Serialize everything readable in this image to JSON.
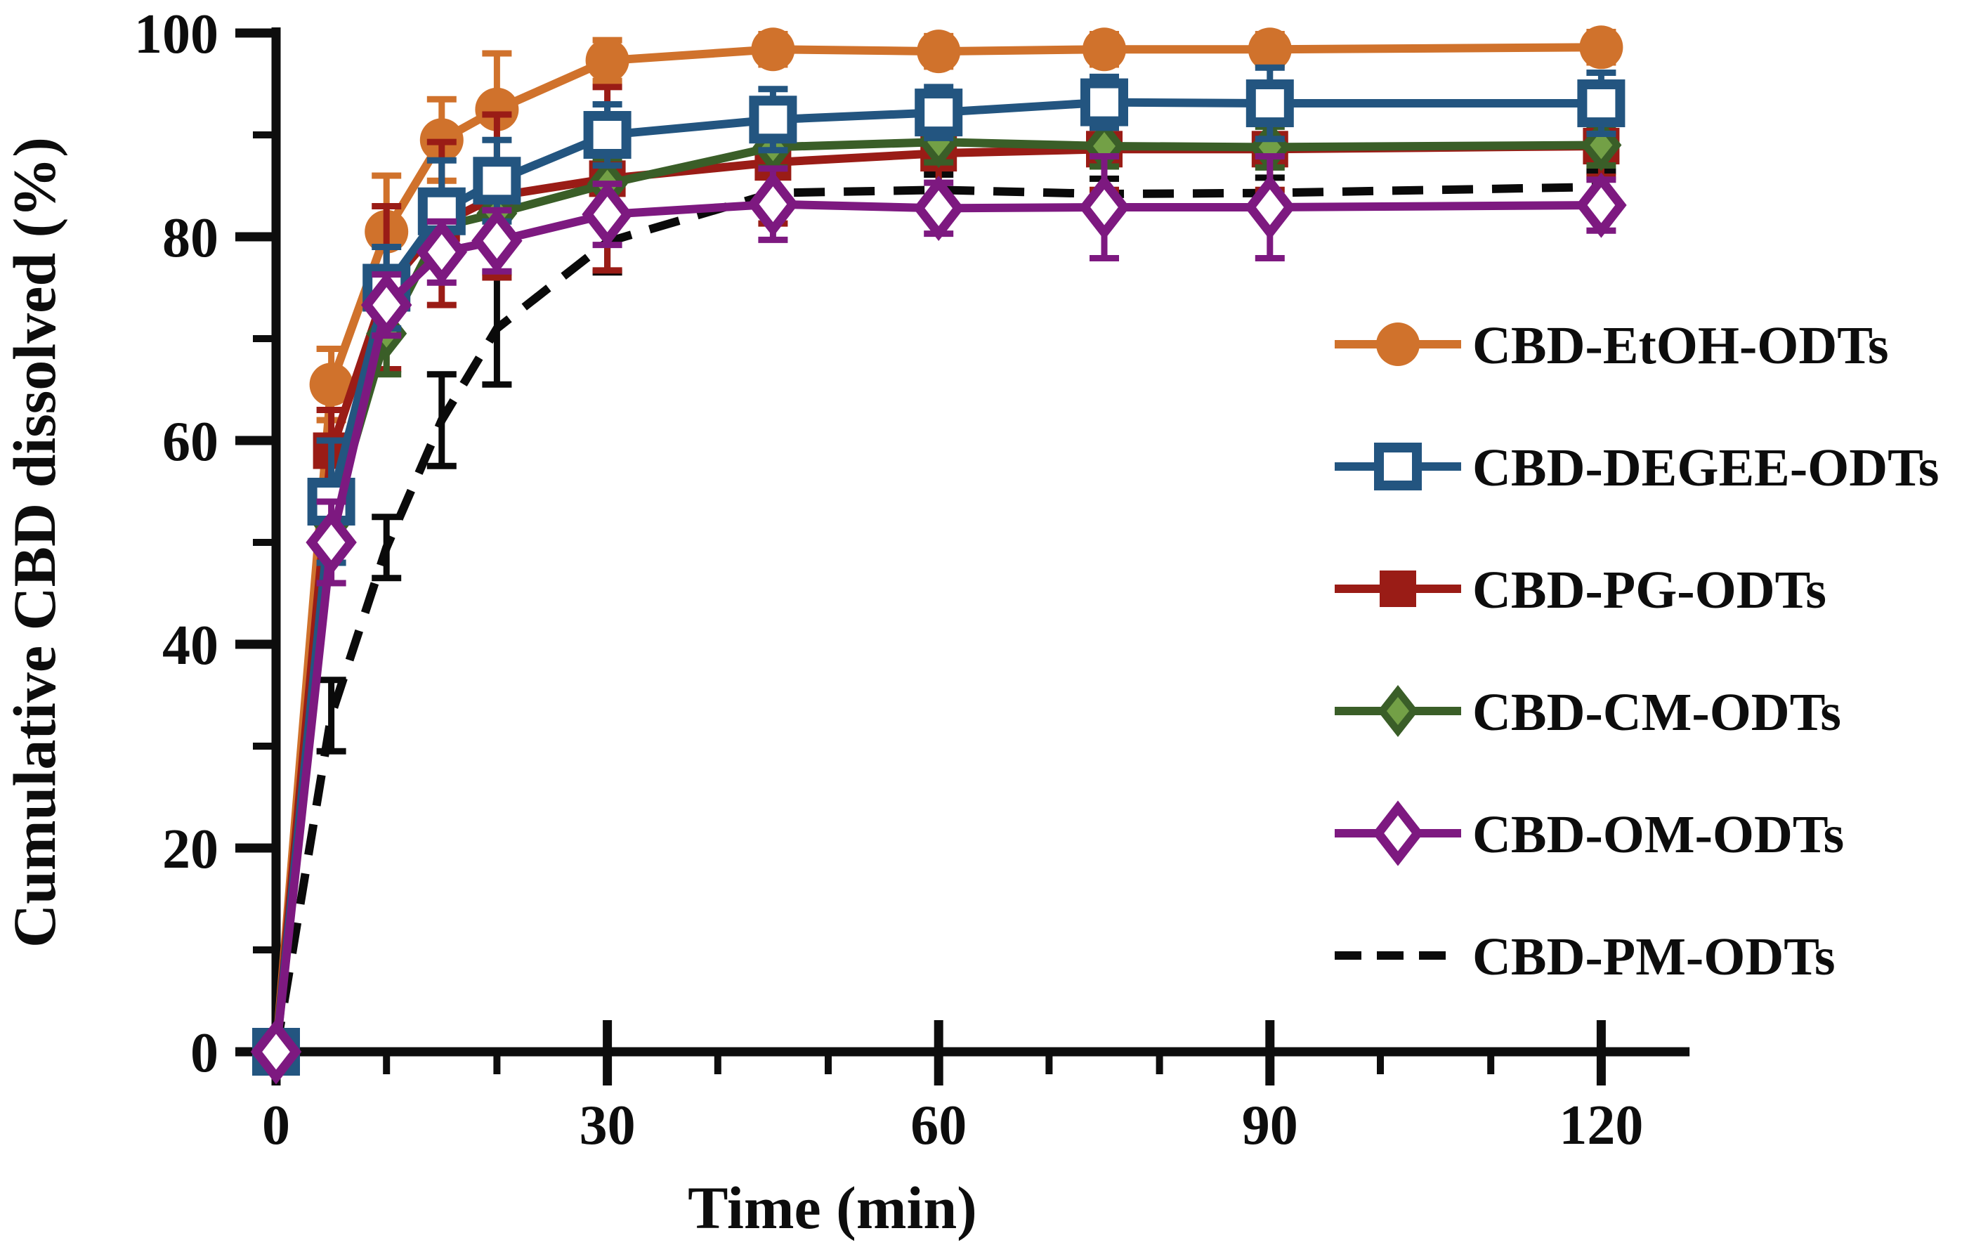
{
  "figure": {
    "background": "#ffffff"
  },
  "chart_data": {
    "type": "line",
    "title": "",
    "xlabel": "Time (min)",
    "ylabel": "Cumulative CBD dissolved (%)",
    "x": [
      0,
      5,
      10,
      15,
      20,
      30,
      45,
      60,
      75,
      90,
      120
    ],
    "xlim": [
      0,
      128
    ],
    "ylim": [
      0,
      100
    ],
    "x_major_ticks": [
      0,
      30,
      60,
      90,
      120
    ],
    "x_minor_ticks": [
      10,
      20,
      40,
      50,
      70,
      80,
      100,
      110
    ],
    "y_major_ticks": [
      0,
      20,
      40,
      60,
      80,
      100
    ],
    "y_minor_ticks": [
      10,
      30,
      50,
      70,
      90
    ],
    "grid": "off",
    "legend_position": "right",
    "series": [
      {
        "name": "CBD-EtOH-ODTs",
        "color": "#d0722c",
        "marker": "filled-circle",
        "line": "solid",
        "values": [
          0,
          65.5,
          80.5,
          89.5,
          92.5,
          97.3,
          98.4,
          98.2,
          98.4,
          98.4,
          98.6
        ],
        "errors": [
          0,
          3.5,
          5.5,
          4,
          5.5,
          2,
          1.5,
          1.5,
          1.5,
          1.5,
          1.5
        ]
      },
      {
        "name": "CBD-DEGEE-ODTs",
        "color": "#235580",
        "marker": "open-square",
        "line": "solid",
        "values": [
          0,
          54,
          75,
          82.5,
          85.5,
          90,
          91.5,
          92.2,
          93.2,
          93.1,
          93.1
        ],
        "errors": [
          0,
          6,
          4,
          5,
          4,
          3,
          3,
          2.5,
          2.5,
          3.5,
          3
        ]
      },
      {
        "name": "CBD-PG-ODTs",
        "color": "#9a1c16",
        "marker": "filled-square",
        "line": "solid",
        "values": [
          0,
          59,
          75,
          81.3,
          84,
          85.7,
          87.3,
          88.2,
          88.6,
          88.6,
          88.9
        ],
        "errors": [
          0,
          4,
          8,
          8,
          8,
          9,
          6,
          6,
          4,
          4,
          3
        ]
      },
      {
        "name": "CBD-CM-ODTs",
        "color": "#3a5e28",
        "color2": "#73a046",
        "marker": "filled-diamond",
        "line": "solid",
        "values": [
          0,
          52,
          70.5,
          81,
          82.3,
          85.2,
          88.8,
          89.3,
          88.9,
          88.8,
          89
        ],
        "errors": [
          0,
          3,
          4,
          3,
          3,
          2.5,
          2,
          2,
          2,
          2,
          2
        ]
      },
      {
        "name": "CBD-OM-ODTs",
        "color": "#7d1980",
        "marker": "open-diamond",
        "line": "solid",
        "values": [
          0,
          50,
          73.3,
          78.5,
          79.6,
          82.2,
          83.2,
          82.8,
          82.9,
          82.9,
          83.1
        ],
        "errors": [
          0,
          4,
          3,
          3,
          3,
          3,
          3.5,
          2.5,
          5,
          5,
          2.5
        ]
      },
      {
        "name": "CBD-PM-ODTs",
        "color": "#0a0a0a",
        "marker": "none",
        "line": "dashed",
        "values": [
          0,
          33,
          49.5,
          62,
          71,
          79.5,
          84.3,
          84.6,
          84.2,
          84.3,
          84.9
        ],
        "errors": [
          0,
          3.5,
          3,
          4.5,
          5.5,
          3,
          2,
          1.5,
          1.5,
          1.5,
          1.5
        ]
      }
    ]
  }
}
